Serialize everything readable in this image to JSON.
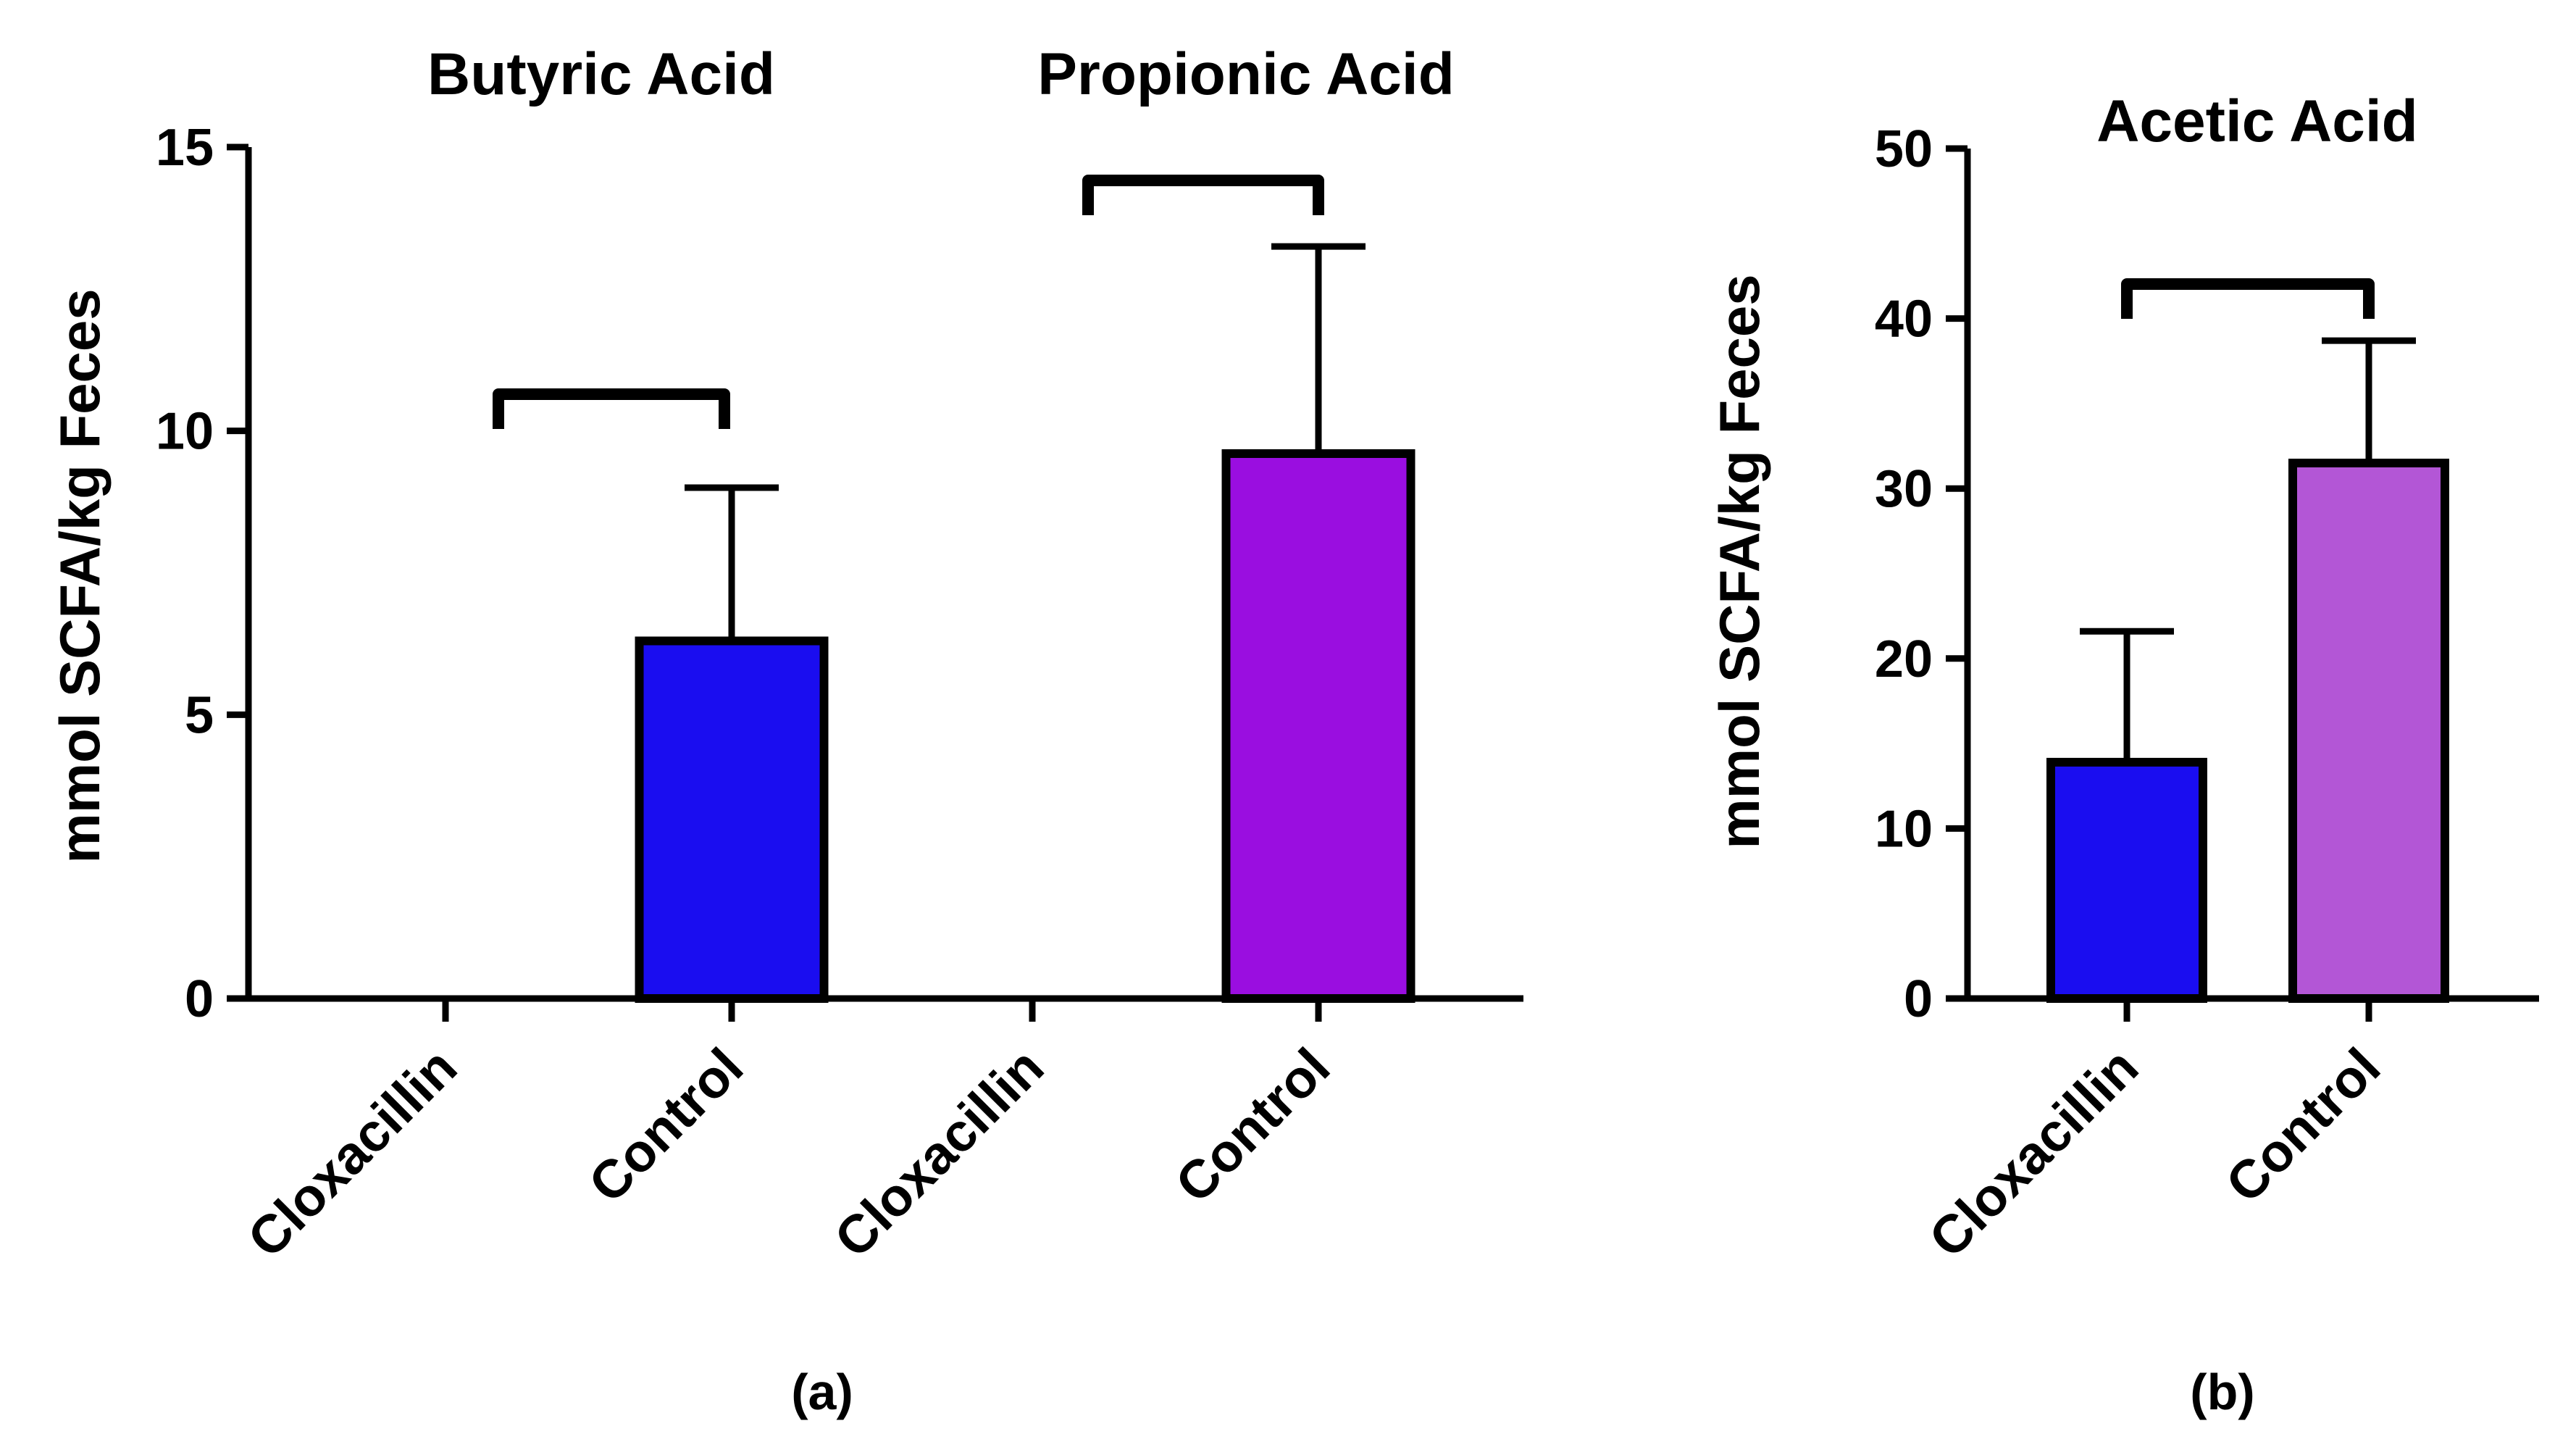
{
  "chart_data": [
    {
      "type": "bar",
      "panel_label": "(a)",
      "ylabel": "mmol SCFA/kg Feces",
      "ylim": [
        0,
        15
      ],
      "yticks": [
        "0",
        "5",
        "10",
        "15"
      ],
      "groups": [
        {
          "title": "Butyric Acid",
          "categories": [
            "Cloxacillin",
            "Control"
          ],
          "values": [
            0,
            6.3
          ],
          "error": [
            0,
            2.7
          ],
          "colors": [
            "#1a0df0",
            "#1a0df0"
          ],
          "significance_bracket": true
        },
        {
          "title": "Propionic Acid",
          "categories": [
            "Cloxacillin",
            "Control"
          ],
          "values": [
            0,
            9.6
          ],
          "error": [
            0,
            3.65
          ],
          "colors": [
            "#9a0ee0",
            "#9a0ee0"
          ],
          "significance_bracket": true
        }
      ]
    },
    {
      "type": "bar",
      "panel_label": "(b)",
      "title": "Acetic Acid",
      "ylabel": "mmol SCFA/kg Feces",
      "ylim": [
        0,
        50
      ],
      "yticks": [
        "0",
        "10",
        "20",
        "30",
        "40",
        "50"
      ],
      "categories": [
        "Cloxacillin",
        "Control"
      ],
      "values": [
        13.9,
        31.5
      ],
      "error": [
        7.7,
        7.2
      ],
      "colors": [
        "#1a0df0",
        "#b356d6"
      ],
      "significance_bracket": true
    }
  ]
}
